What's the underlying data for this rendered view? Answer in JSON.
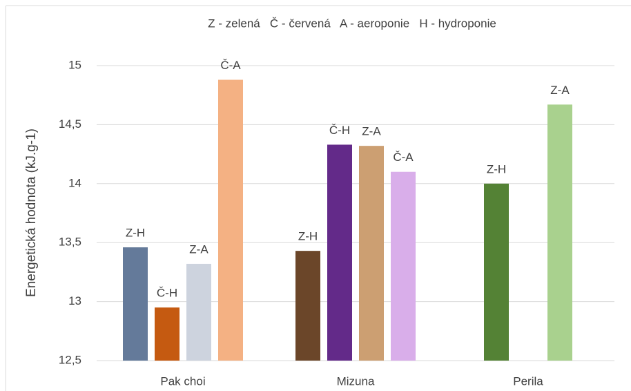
{
  "chart_data": {
    "type": "bar",
    "title": "Z - zelená   Č - červená   A - aeroponie   H - hydroponie",
    "y_label": "Energetická hodnota (kJ.g-1)",
    "categories": [
      "Pak choi",
      "Mizuna",
      "Perila"
    ],
    "groups": [
      {
        "bars": [
          {
            "label": "Z-H",
            "value": 13.46,
            "color": "#647a9a"
          },
          {
            "label": "Č-H",
            "value": 12.95,
            "color": "#c55a11"
          },
          {
            "label": "Z-A",
            "value": 13.32,
            "color": "#cdd3de"
          },
          {
            "label": "Č-A",
            "value": 14.88,
            "color": "#f4b183"
          }
        ]
      },
      {
        "bars": [
          {
            "label": "Z-H",
            "value": 13.43,
            "color": "#6b4629"
          },
          {
            "label": "Č-H",
            "value": 14.33,
            "color": "#632a89"
          },
          {
            "label": "Z-A",
            "value": 14.32,
            "color": "#cc9f72"
          },
          {
            "label": "Č-A",
            "value": 14.1,
            "color": "#d9aeea"
          }
        ]
      },
      {
        "bars": [
          {
            "label": "Z-H",
            "value": 14.0,
            "color": "#548235"
          },
          {
            "label": "Z-A",
            "value": 14.67,
            "color": "#a9d18e"
          }
        ]
      }
    ],
    "ylim": [
      12.5,
      15
    ],
    "yticks": [
      {
        "value": 12.5,
        "label": "12,5"
      },
      13,
      {
        "value": 13.5,
        "label": "13,5"
      },
      14,
      {
        "value": 14.5,
        "label": "14,5"
      },
      15
    ],
    "grid": true
  }
}
